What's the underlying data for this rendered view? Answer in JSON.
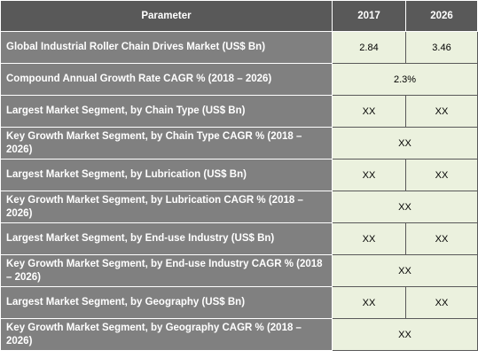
{
  "header": {
    "parameter": "Parameter",
    "y1": "2017",
    "y2": "2026"
  },
  "rows": [
    {
      "label": "Global Industrial Roller Chain Drives Market (US$ Bn)",
      "v1": "2.84",
      "v2": "3.46"
    },
    {
      "label": "Compound Annual Growth Rate CAGR % (2018 – 2026)",
      "span": "2.3%"
    },
    {
      "label": "Largest Market Segment, by Chain Type (US$ Bn)",
      "v1": "XX",
      "v2": "XX"
    },
    {
      "label": "Key Growth Market Segment, by Chain Type CAGR % (2018 – 2026)",
      "span": "XX"
    },
    {
      "label": "Largest Market Segment, by Lubrication (US$ Bn)",
      "v1": "XX",
      "v2": "XX"
    },
    {
      "label": "Key Growth Market Segment, by Lubrication CAGR % (2018 – 2026)",
      "span": "XX"
    },
    {
      "label": "Largest Market Segment, by End-use Industry (US$ Bn)",
      "v1": "XX",
      "v2": "XX"
    },
    {
      "label": "Key Growth Market Segment, by End-use Industry CAGR % (2018 – 2026)",
      "span": "XX"
    },
    {
      "label": "Largest Market Segment, by Geography (US$ Bn)",
      "v1": "XX",
      "v2": "XX"
    },
    {
      "label": "Key Growth Market Segment, by Geography CAGR % (2018 – 2026)",
      "span": "XX"
    }
  ],
  "colors": {
    "header_bg": "#595959",
    "label_bg": "#808080",
    "value_bg": "#ebf1de"
  }
}
